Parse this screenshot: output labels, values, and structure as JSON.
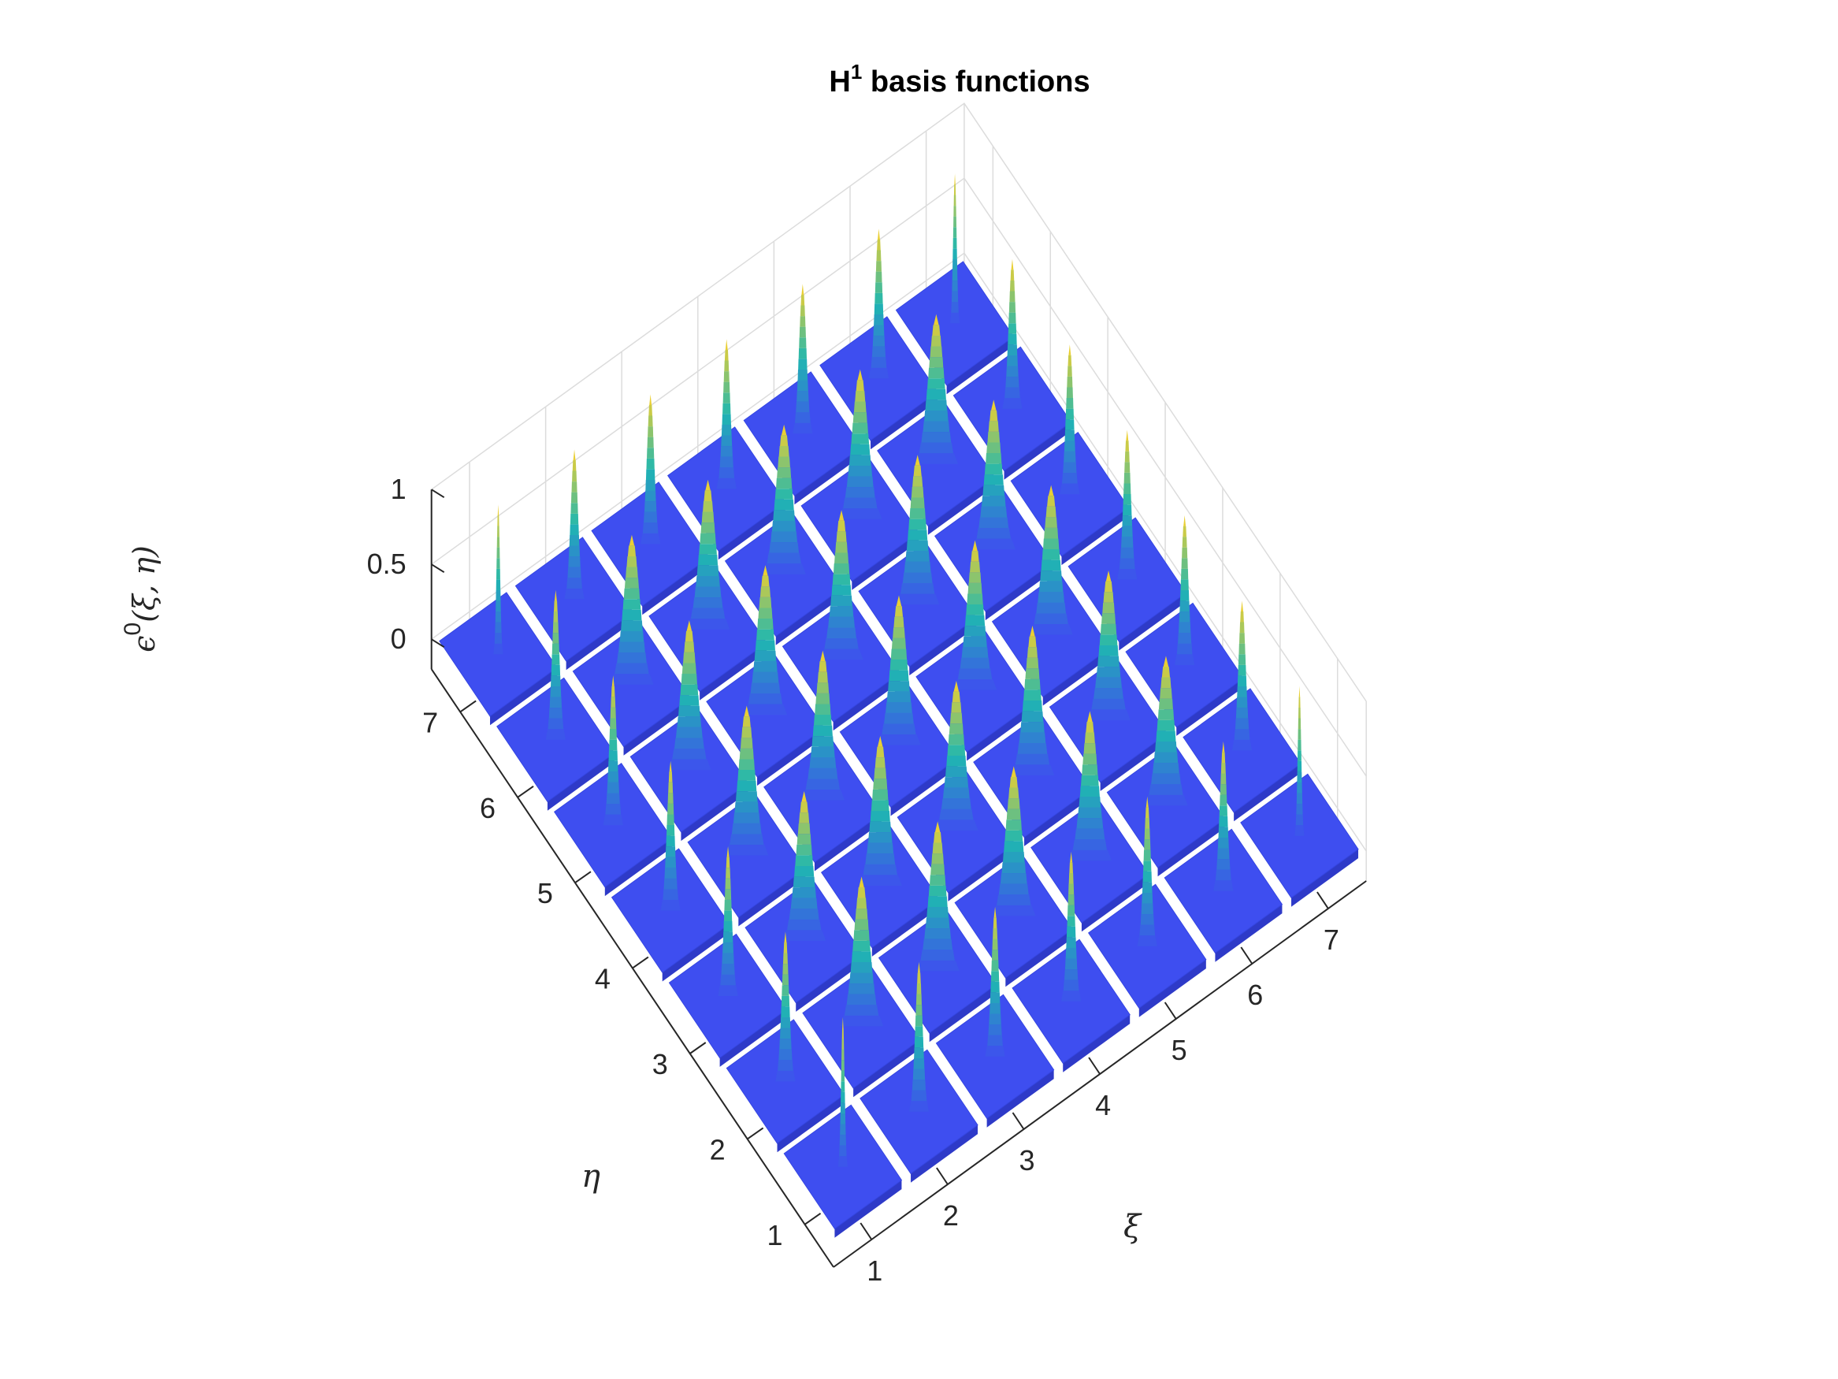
{
  "chart_data": {
    "type": "surface",
    "title": {
      "main": "H",
      "superscript": "1",
      "rest": " basis functions"
    },
    "xlabel": "ξ",
    "ylabel": "η",
    "zlabel": {
      "symbol": "ϵ",
      "superscript": "0",
      "args": "(ξ, η)"
    },
    "x_ticks": [
      "1",
      "2",
      "3",
      "4",
      "5",
      "6",
      "7"
    ],
    "y_ticks": [
      "1",
      "2",
      "3",
      "4",
      "5",
      "6",
      "7"
    ],
    "z_ticks": [
      "0",
      "0.5",
      "1"
    ],
    "xlim": [
      0.5,
      7.5
    ],
    "ylim": [
      0.5,
      7.5
    ],
    "zlim": [
      -0.2,
      1.0
    ],
    "grid": true,
    "colormap": "parula",
    "colors": {
      "low": "#3e4ef0",
      "mid": "#1fb7b0",
      "high": "#f9d12a",
      "background": "#ffffff",
      "axis": "#262626",
      "grid": "#dcdcdc"
    },
    "tiles": {
      "rows": 7,
      "cols": 7,
      "peak_height": 1.0,
      "baseline": 0.0,
      "peak_width_interior": 0.55,
      "peak_width_edge": 0.25,
      "peak_width_corner": 0.12
    }
  }
}
